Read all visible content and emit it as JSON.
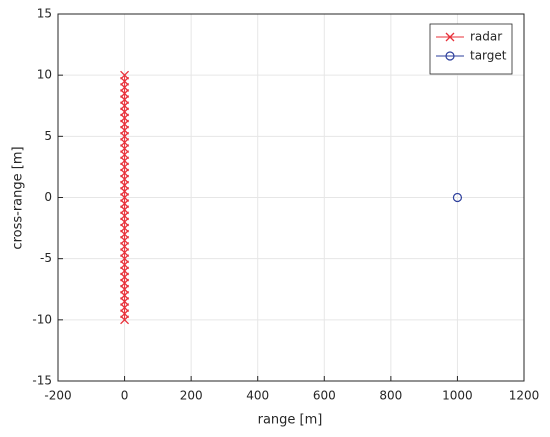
{
  "chart_data": {
    "type": "scatter",
    "xlabel": "range [m]",
    "ylabel": "cross-range [m]",
    "xlim": [
      -200,
      1200
    ],
    "xticks": [
      -200,
      0,
      200,
      400,
      600,
      800,
      1000,
      1200
    ],
    "ylim": [
      -15,
      15
    ],
    "yticks": [
      -15,
      -10,
      -5,
      0,
      5,
      10,
      15
    ],
    "grid": true,
    "legend": "northeast",
    "series": [
      {
        "name": "radar",
        "color": "#e8313a",
        "marker": "x",
        "line": true,
        "x": [
          0,
          0,
          0,
          0,
          0,
          0,
          0,
          0,
          0,
          0,
          0,
          0,
          0,
          0,
          0,
          0,
          0,
          0,
          0,
          0,
          0,
          0,
          0,
          0,
          0,
          0,
          0,
          0,
          0,
          0,
          0,
          0,
          0,
          0,
          0,
          0,
          0,
          0,
          0,
          0,
          0
        ],
        "values": [
          -10,
          -9.5,
          -9,
          -8.5,
          -8,
          -7.5,
          -7,
          -6.5,
          -6,
          -5.5,
          -5,
          -4.5,
          -4,
          -3.5,
          -3,
          -2.5,
          -2,
          -1.5,
          -1,
          -0.5,
          0,
          0.5,
          1,
          1.5,
          2,
          2.5,
          3,
          3.5,
          4,
          4.5,
          5,
          5.5,
          6,
          6.5,
          7,
          7.5,
          8,
          8.5,
          9,
          9.5,
          10
        ]
      },
      {
        "name": "target",
        "color": "#2d3f9c",
        "marker": "o",
        "line": false,
        "x": [
          1000
        ],
        "values": [
          0
        ]
      }
    ]
  }
}
